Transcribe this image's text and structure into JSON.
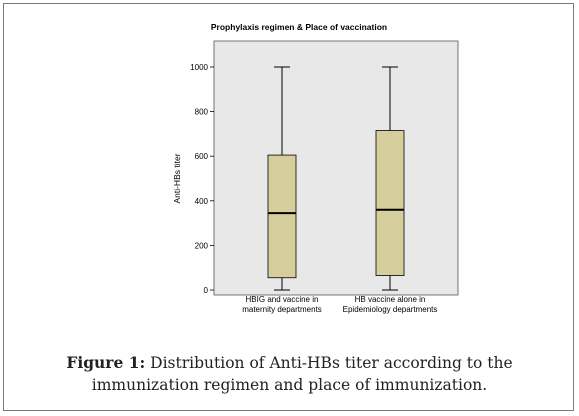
{
  "chart_data": {
    "type": "box",
    "title": "Prophylaxis regimen & Place of vaccination",
    "xlabel": "",
    "ylabel": "Anti-HBs titer",
    "ylim": [
      0,
      1050
    ],
    "yticks": [
      0,
      200,
      400,
      600,
      800,
      1000
    ],
    "grid": false,
    "categories": [
      [
        "HBIG and vaccine in",
        "maternity departments"
      ],
      [
        "HB vaccine alone in",
        "Epidemiology departments"
      ]
    ],
    "boxes": [
      {
        "min": 0,
        "q1": 55,
        "median": 345,
        "q3": 605,
        "max": 1000
      },
      {
        "min": 0,
        "q1": 65,
        "median": 360,
        "q3": 715,
        "max": 1000
      }
    ],
    "colors": {
      "box_fill": "#d6ce9c",
      "plot_bg": "#e8e8e8",
      "outer_bg": "#ffffff",
      "line": "#000000"
    }
  },
  "caption": {
    "label": "Figure 1:",
    "text": " Distribution of Anti-HBs titer according to the immunization regimen and place of immunization."
  }
}
